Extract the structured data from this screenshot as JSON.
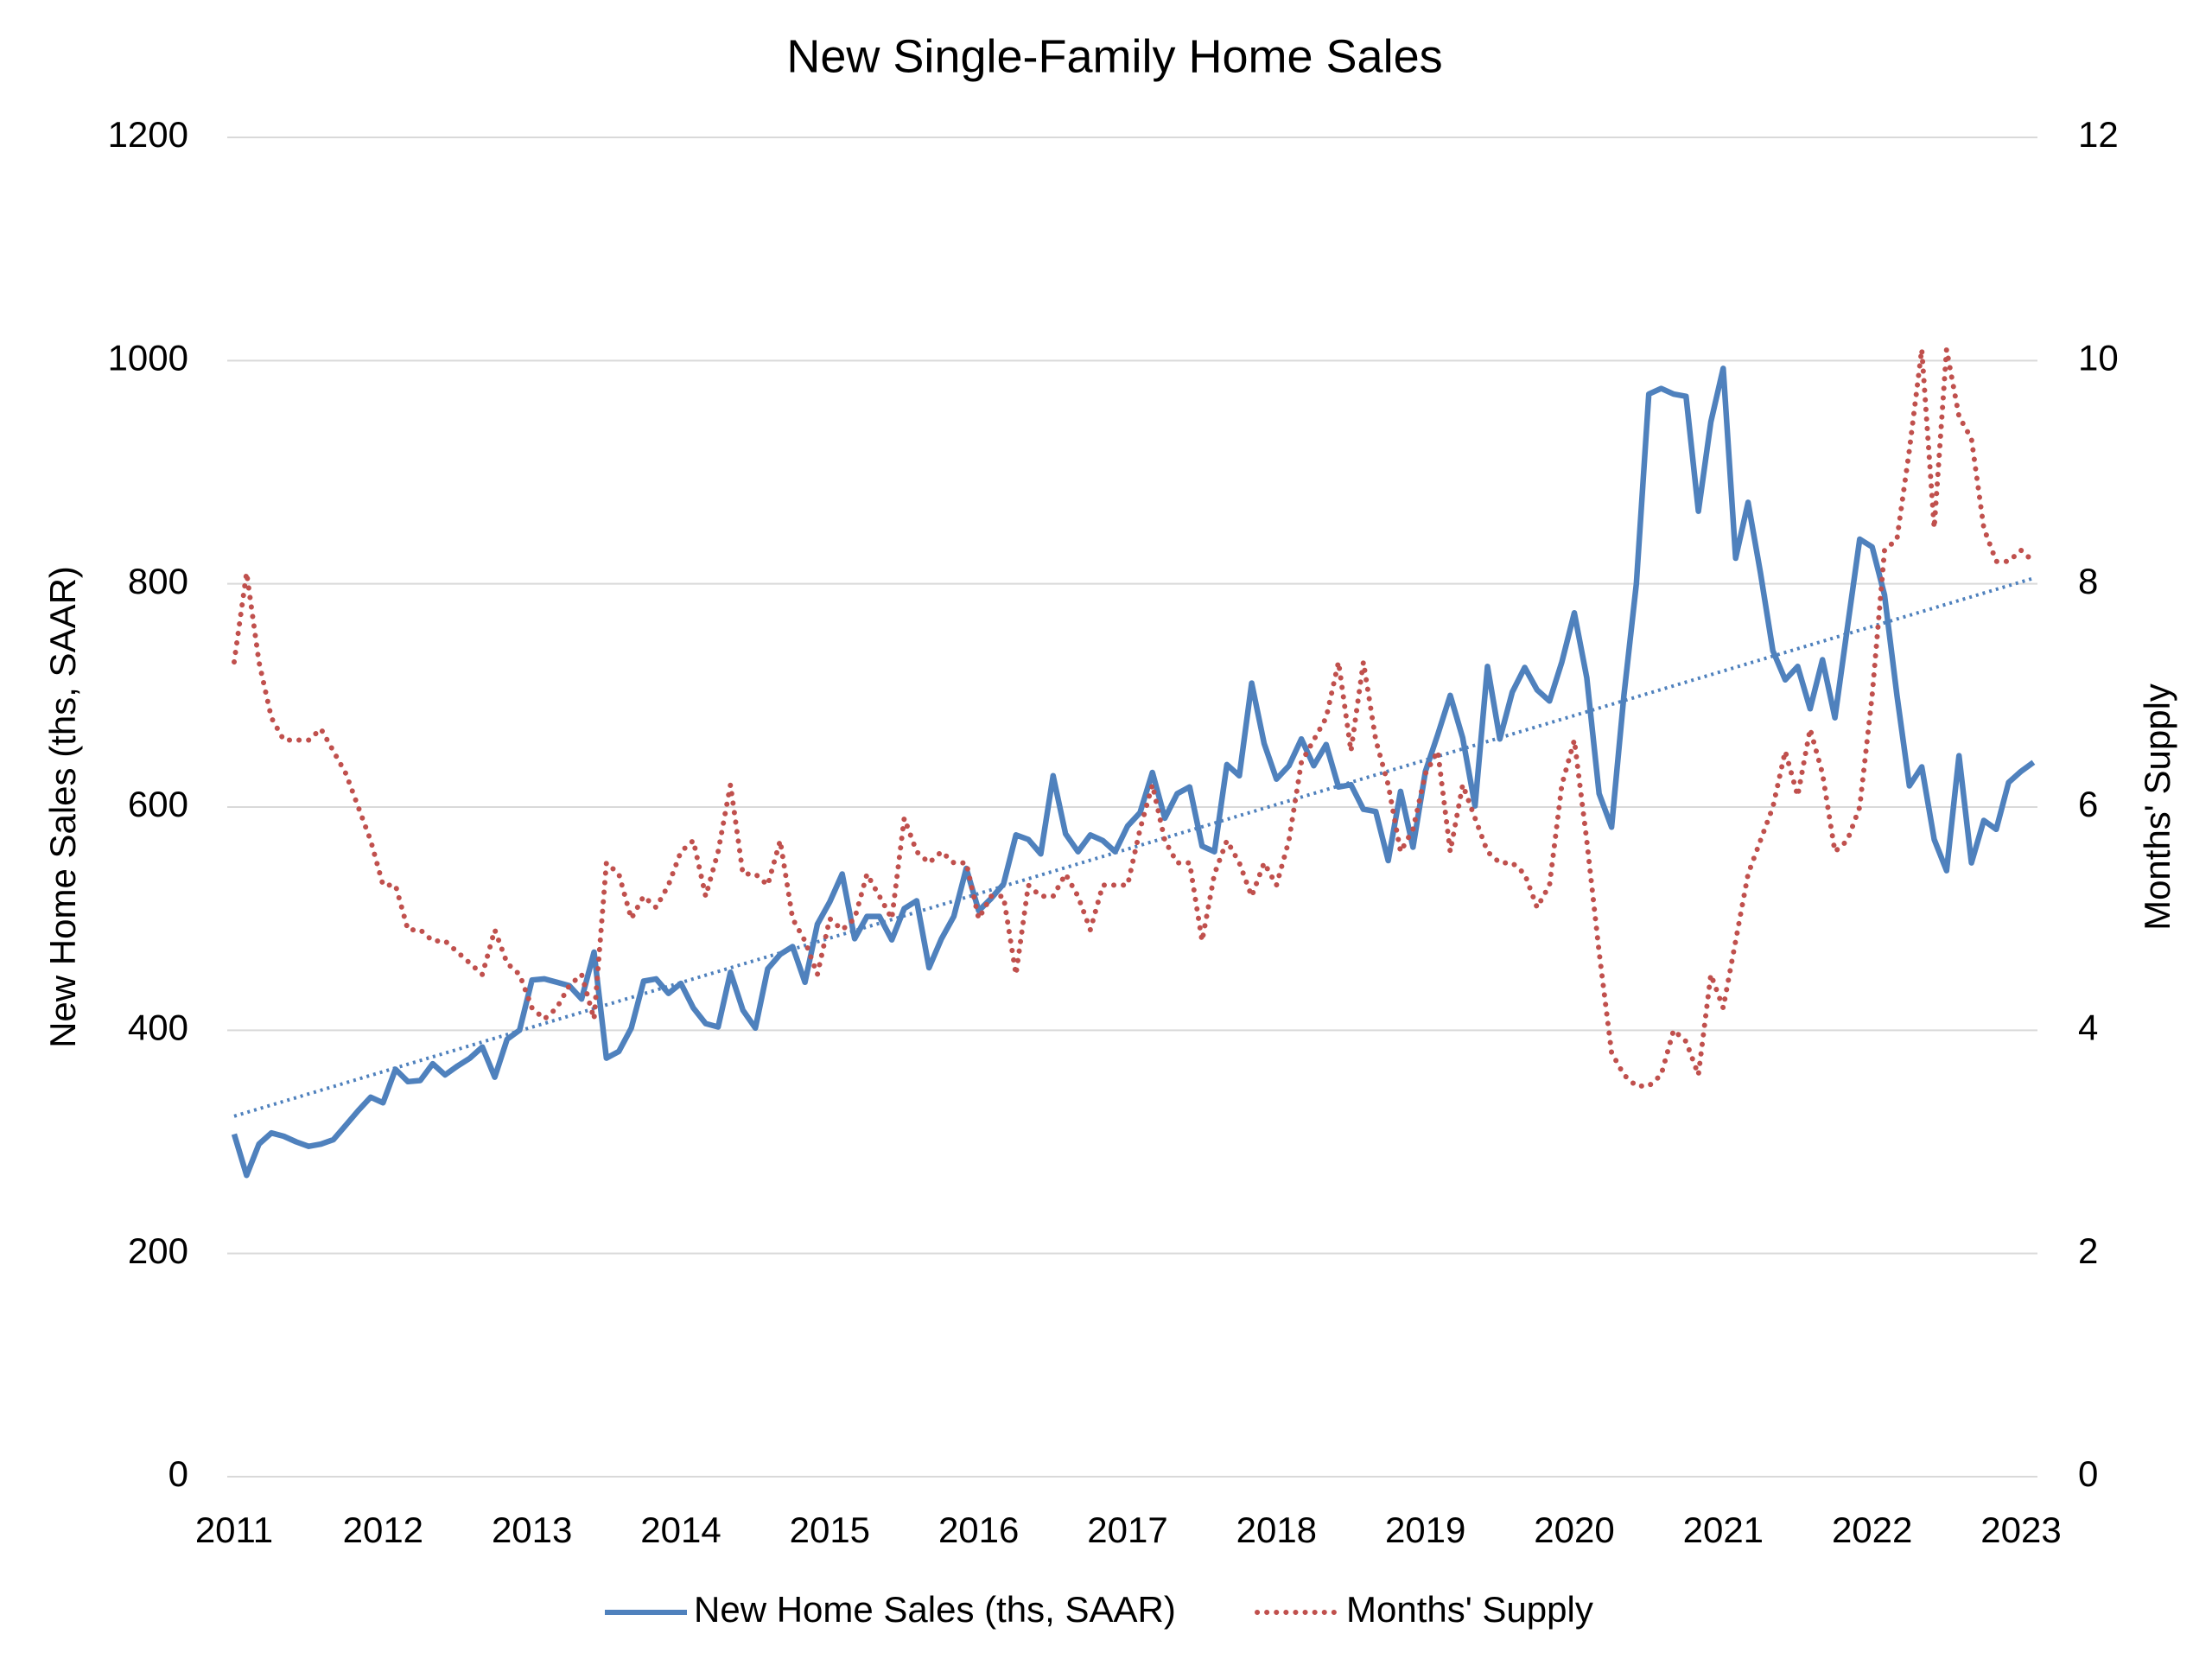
{
  "chart_data": {
    "type": "line",
    "title": "New Single-Family Home Sales",
    "y_label": "New Home Sales (ths, SAAR)",
    "y2_label": "Months' Supply",
    "categories": [
      "2011",
      null,
      null,
      null,
      null,
      null,
      null,
      null,
      null,
      null,
      null,
      null,
      "2012",
      null,
      null,
      null,
      null,
      null,
      null,
      null,
      null,
      null,
      null,
      null,
      "2013",
      null,
      null,
      null,
      null,
      null,
      null,
      null,
      null,
      null,
      null,
      null,
      "2014",
      null,
      null,
      null,
      null,
      null,
      null,
      null,
      null,
      null,
      null,
      null,
      "2015",
      null,
      null,
      null,
      null,
      null,
      null,
      null,
      null,
      null,
      null,
      null,
      "2016",
      null,
      null,
      null,
      null,
      null,
      null,
      null,
      null,
      null,
      null,
      null,
      "2017",
      null,
      null,
      null,
      null,
      null,
      null,
      null,
      null,
      null,
      null,
      null,
      "2018",
      null,
      null,
      null,
      null,
      null,
      null,
      null,
      null,
      null,
      null,
      null,
      "2019",
      null,
      null,
      null,
      null,
      null,
      null,
      null,
      null,
      null,
      null,
      null,
      "2020",
      null,
      null,
      null,
      null,
      null,
      null,
      null,
      null,
      null,
      null,
      null,
      "2021",
      null,
      null,
      null,
      null,
      null,
      null,
      null,
      null,
      null,
      null,
      null,
      "2022",
      null,
      null,
      null,
      null,
      null,
      null,
      null,
      null,
      null,
      null,
      null,
      "2023",
      null
    ],
    "series": [
      {
        "name": "New Home Sales (ths, SAAR)",
        "color": "#4f81bd",
        "style": "solid",
        "axis": "y",
        "values": [
          307,
          270,
          298,
          308,
          305,
          300,
          296,
          298,
          302,
          315,
          328,
          340,
          335,
          365,
          354,
          355,
          370,
          360,
          368,
          375,
          385,
          358,
          392,
          400,
          445,
          446,
          443,
          440,
          428,
          470,
          375,
          381,
          402,
          444,
          446,
          433,
          442,
          420,
          406,
          403,
          452,
          418,
          402,
          455,
          468,
          475,
          443,
          495,
          515,
          540,
          482,
          502,
          502,
          481,
          509,
          516,
          456,
          482,
          502,
          545,
          507,
          518,
          531,
          575,
          571,
          558,
          628,
          576,
          560,
          575,
          570,
          560,
          583,
          595,
          631,
          590,
          612,
          618,
          565,
          560,
          638,
          628,
          711,
          657,
          625,
          637,
          661,
          637,
          656,
          618,
          620,
          598,
          596,
          552,
          614,
          564,
          632,
          665,
          700,
          662,
          601,
          726,
          661,
          703,
          725,
          705,
          695,
          730,
          774,
          716,
          612,
          582,
          700,
          800,
          970,
          975,
          970,
          968,
          865,
          945,
          993,
          823,
          873,
          810,
          740,
          714,
          726,
          688,
          732,
          680,
          760,
          840,
          833,
          790,
          700,
          619,
          636,
          571,
          543,
          646,
          550,
          588,
          580,
          622,
          632,
          640
        ]
      },
      {
        "name": "Months' Supply",
        "color": "#c0504d",
        "style": "dotted",
        "axis": "y2",
        "values": [
          7.3,
          8.1,
          7.3,
          6.8,
          6.6,
          6.6,
          6.6,
          6.7,
          6.5,
          6.3,
          6.0,
          5.7,
          5.3,
          5.3,
          4.9,
          4.9,
          4.8,
          4.8,
          4.7,
          4.6,
          4.5,
          4.9,
          4.6,
          4.5,
          4.2,
          4.1,
          4.2,
          4.4,
          4.5,
          4.1,
          5.5,
          5.4,
          5.0,
          5.2,
          5.1,
          5.3,
          5.6,
          5.7,
          5.2,
          5.6,
          6.2,
          5.4,
          5.4,
          5.3,
          5.7,
          5.0,
          4.8,
          4.5,
          5.0,
          4.9,
          5.0,
          5.4,
          5.2,
          5.0,
          5.9,
          5.6,
          5.5,
          5.6,
          5.5,
          5.5,
          5.0,
          5.2,
          5.2,
          4.5,
          5.3,
          5.2,
          5.2,
          5.4,
          5.2,
          4.9,
          5.3,
          5.3,
          5.3,
          5.8,
          6.2,
          5.7,
          5.5,
          5.5,
          4.8,
          5.4,
          5.7,
          5.5,
          5.2,
          5.5,
          5.3,
          5.7,
          6.4,
          6.6,
          6.8,
          7.3,
          6.5,
          7.3,
          6.6,
          6.2,
          5.6,
          5.8,
          6.3,
          6.5,
          5.6,
          6.2,
          5.9,
          5.6,
          5.5,
          5.5,
          5.4,
          5.1,
          5.3,
          6.2,
          6.6,
          5.7,
          4.7,
          3.8,
          3.6,
          3.5,
          3.5,
          3.6,
          4.0,
          3.9,
          3.6,
          4.5,
          4.2,
          4.8,
          5.4,
          5.7,
          6.0,
          6.5,
          6.1,
          6.7,
          6.3,
          5.6,
          5.7,
          6.0,
          7.0,
          8.3,
          8.4,
          9.2,
          10.1,
          8.5,
          10.1,
          9.5,
          9.3,
          8.5,
          8.2,
          8.2,
          8.3,
          8.2
        ]
      }
    ],
    "trend": {
      "color": "#4f81bd",
      "start": 323,
      "end": 805
    },
    "ylim": [
      0,
      1200
    ],
    "yticks": [
      0,
      200,
      400,
      600,
      800,
      1000,
      1200
    ],
    "y2lim": [
      0,
      12
    ],
    "y2ticks": [
      0,
      2,
      4,
      6,
      8,
      10,
      12
    ],
    "grid": true,
    "legend": "bottom"
  }
}
